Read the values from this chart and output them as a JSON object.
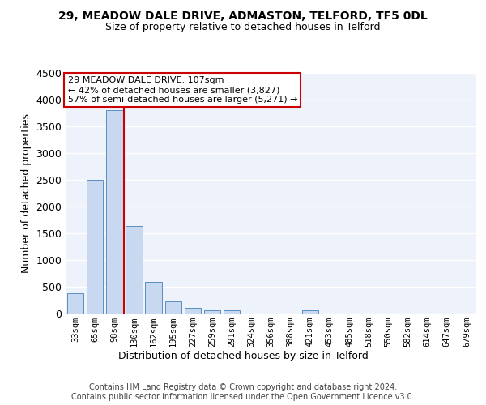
{
  "title": "29, MEADOW DALE DRIVE, ADMASTON, TELFORD, TF5 0DL",
  "subtitle": "Size of property relative to detached houses in Telford",
  "xlabel": "Distribution of detached houses by size in Telford",
  "ylabel": "Number of detached properties",
  "bar_labels": [
    "33sqm",
    "65sqm",
    "98sqm",
    "130sqm",
    "162sqm",
    "195sqm",
    "227sqm",
    "259sqm",
    "291sqm",
    "324sqm",
    "356sqm",
    "388sqm",
    "421sqm",
    "453sqm",
    "485sqm",
    "518sqm",
    "550sqm",
    "582sqm",
    "614sqm",
    "647sqm",
    "679sqm"
  ],
  "bar_values": [
    380,
    2500,
    3800,
    1640,
    590,
    240,
    110,
    65,
    65,
    0,
    0,
    0,
    65,
    0,
    0,
    0,
    0,
    0,
    0,
    0,
    0
  ],
  "bar_color": "#c8d8f0",
  "bar_edgecolor": "#5a8fc0",
  "background_color": "#eef3fb",
  "grid_color": "#ffffff",
  "vline_x": 2.5,
  "vline_color": "#cc0000",
  "annotation_text": "29 MEADOW DALE DRIVE: 107sqm\n← 42% of detached houses are smaller (3,827)\n57% of semi-detached houses are larger (5,271) →",
  "annotation_box_color": "#ffffff",
  "annotation_box_edgecolor": "#cc0000",
  "footer_text": "Contains HM Land Registry data © Crown copyright and database right 2024.\nContains public sector information licensed under the Open Government Licence v3.0.",
  "ylim": [
    0,
    4500
  ],
  "yticks": [
    0,
    500,
    1000,
    1500,
    2000,
    2500,
    3000,
    3500,
    4000,
    4500
  ]
}
